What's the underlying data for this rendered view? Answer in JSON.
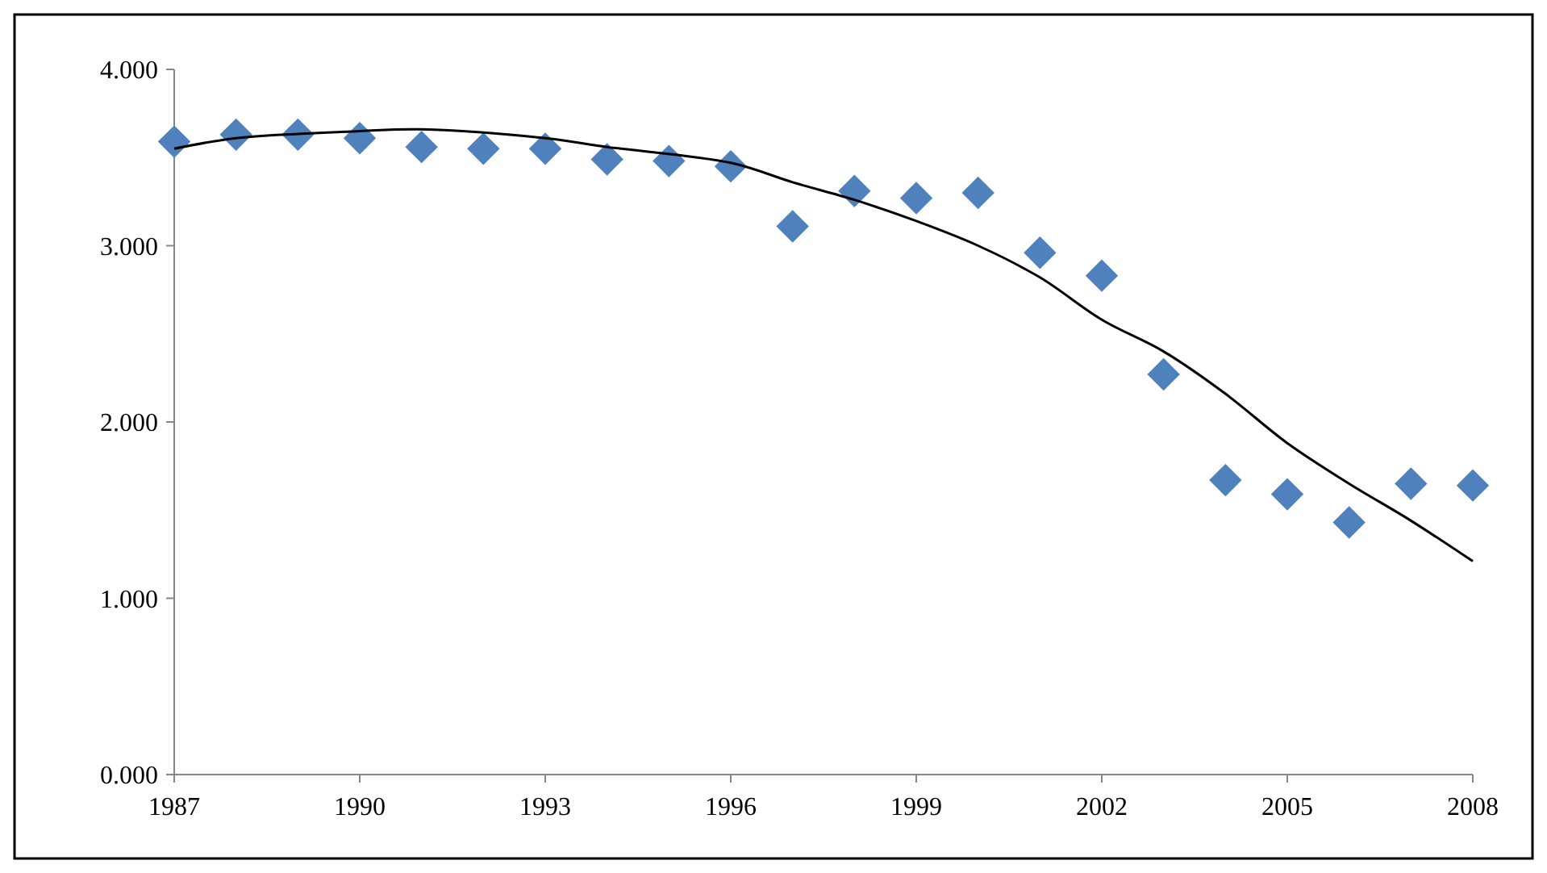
{
  "chart_data": {
    "type": "scatter",
    "grid": false,
    "xlim": [
      1987,
      2008
    ],
    "xticks": [
      1987,
      1990,
      1993,
      1996,
      1999,
      2002,
      2005,
      2008
    ],
    "ylim": [
      0,
      4
    ],
    "yticks": [
      {
        "value": 0,
        "label": "0.000"
      },
      {
        "value": 1,
        "label": "1.000"
      },
      {
        "value": 2,
        "label": "2.000"
      },
      {
        "value": 3,
        "label": "3.000"
      },
      {
        "value": 4,
        "label": "4.000"
      }
    ],
    "series": [
      {
        "marker": "diamond",
        "color": "#4f81bd",
        "x": [
          1987,
          1988,
          1989,
          1990,
          1991,
          1992,
          1993,
          1994,
          1995,
          1996,
          1997,
          1998,
          1999,
          2000,
          2001,
          2002,
          2003,
          2004,
          2005,
          2006,
          2007,
          2008
        ],
        "values": [
          3.59,
          3.63,
          3.63,
          3.61,
          3.56,
          3.55,
          3.55,
          3.49,
          3.48,
          3.45,
          3.11,
          3.31,
          3.27,
          3.3,
          2.96,
          2.83,
          2.27,
          1.67,
          1.59,
          1.43,
          1.65,
          1.64
        ]
      },
      {
        "type": "line",
        "color": "#000000",
        "line_style": "solid",
        "x": [
          1987,
          1988,
          1990,
          1991,
          1993,
          1994,
          1996,
          1997,
          1998,
          1999,
          2000,
          2001,
          2002,
          2003,
          2004,
          2005,
          2006,
          2007,
          2008
        ],
        "values": [
          3.55,
          3.61,
          3.65,
          3.66,
          3.61,
          3.56,
          3.47,
          3.36,
          3.26,
          3.14,
          3.0,
          2.82,
          2.58,
          2.4,
          2.16,
          1.88,
          1.65,
          1.44,
          1.21
        ]
      }
    ]
  }
}
